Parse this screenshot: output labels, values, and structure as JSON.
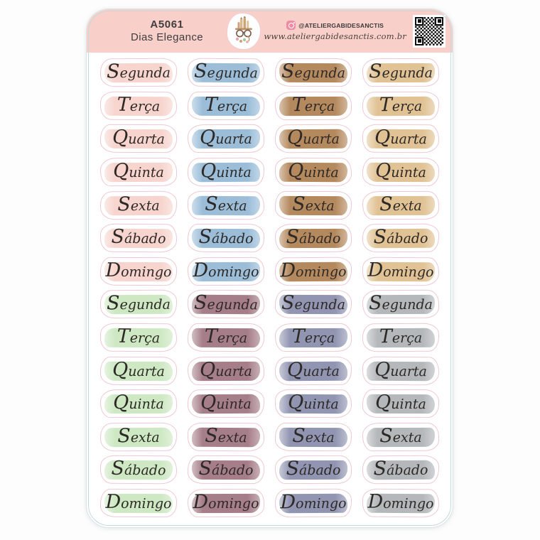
{
  "header": {
    "code": "A5061",
    "title": "Dias Elegance",
    "instagram_handle": "@ATELIERGABIDESANCTIS",
    "website": "www.ateliergabidesanctis.com.br",
    "band_color": "#f8d0c9",
    "text_color": "#3f3d40"
  },
  "stickers": {
    "days": [
      "Segunda",
      "Terça",
      "Quarta",
      "Quinta",
      "Sexta",
      "Sábado",
      "Domingo"
    ],
    "top_colors": [
      "#f7d4cd",
      "#9bbdd8",
      "#b5895e",
      "#e0c294"
    ],
    "bottom_colors": [
      "#cde8c2",
      "#a67e89",
      "#9295b2",
      "#b4b8bb"
    ],
    "columns": 4,
    "rows": 14,
    "ink_color": "#2d2926",
    "die_cut_color": "#efc9d1"
  }
}
